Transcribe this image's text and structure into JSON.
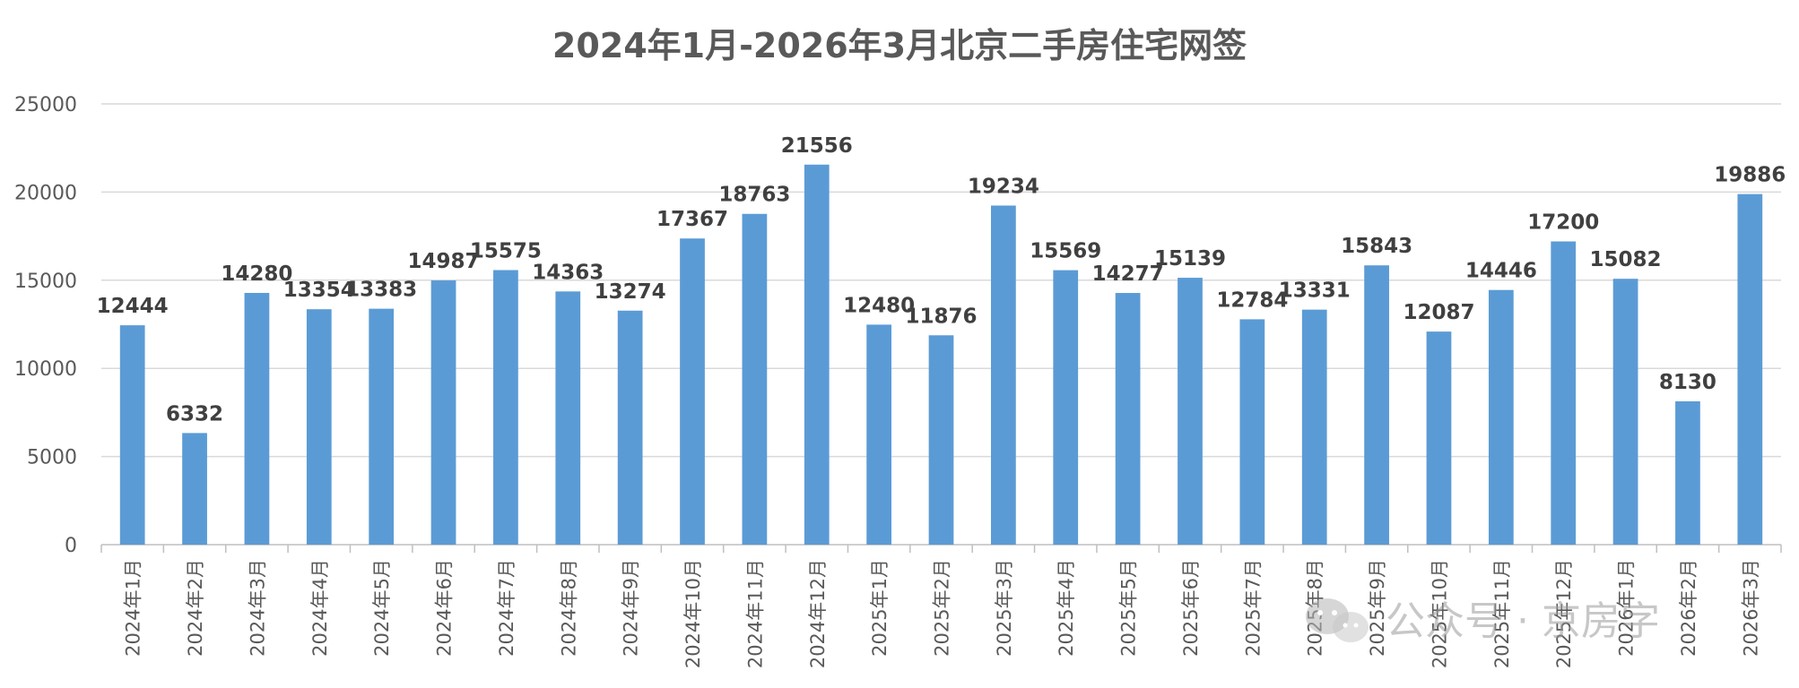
{
  "chart_data": {
    "type": "bar",
    "title": "2024年1月-2026年3月北京二手房住宅网签",
    "xlabel": "",
    "ylabel": "",
    "ylim": [
      0,
      25000
    ],
    "yticks": [
      0,
      5000,
      10000,
      15000,
      20000,
      25000
    ],
    "grid": true,
    "legend": "none",
    "bar_color": "#5b9bd5",
    "categories": [
      "2024年1月",
      "2024年2月",
      "2024年3月",
      "2024年4月",
      "2024年5月",
      "2024年6月",
      "2024年7月",
      "2024年8月",
      "2024年9月",
      "2024年10月",
      "2024年11月",
      "2024年12月",
      "2025年1月",
      "2025年2月",
      "2025年3月",
      "2025年4月",
      "2025年5月",
      "2025年6月",
      "2025年7月",
      "2025年8月",
      "2025年9月",
      "2025年10月",
      "2025年11月",
      "2025年12月",
      "2026年1月",
      "2026年2月",
      "2026年3月"
    ],
    "values": [
      12444,
      6332,
      14280,
      13354,
      13383,
      14987,
      15575,
      14363,
      13274,
      17367,
      18763,
      21556,
      12480,
      11876,
      19234,
      15569,
      14277,
      15139,
      12784,
      13331,
      15843,
      12087,
      14446,
      17200,
      15082,
      8130,
      19886
    ]
  },
  "watermark": {
    "text": "公众号 · 京房字",
    "icon": "wechat-icon"
  }
}
